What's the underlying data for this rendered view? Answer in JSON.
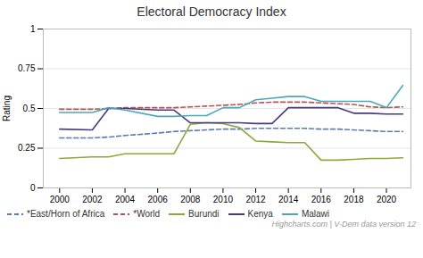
{
  "chart_data": {
    "type": "line",
    "title": "Electoral Democracy Index",
    "ylabel": "Rating",
    "footnote": "Highcharts.com | V-Dem data version 12",
    "x": [
      2000,
      2002,
      2003,
      2004,
      2006,
      2007,
      2008,
      2009,
      2010,
      2011,
      2012,
      2013,
      2014,
      2015,
      2016,
      2017,
      2018,
      2019,
      2020,
      2021
    ],
    "series": [
      {
        "name": "*East/Horn of Africa",
        "color": "#5b7db1",
        "line_style": "dashed",
        "values": [
          0.315,
          0.315,
          0.32,
          0.33,
          0.345,
          0.355,
          0.36,
          0.365,
          0.37,
          0.37,
          0.375,
          0.375,
          0.375,
          0.375,
          0.37,
          0.37,
          0.365,
          0.36,
          0.355,
          0.355
        ]
      },
      {
        "name": "*World",
        "color": "#b85450",
        "line_style": "dashed",
        "values": [
          0.495,
          0.495,
          0.5,
          0.505,
          0.505,
          0.505,
          0.51,
          0.515,
          0.52,
          0.525,
          0.535,
          0.54,
          0.54,
          0.54,
          0.535,
          0.53,
          0.525,
          0.51,
          0.505,
          0.51
        ]
      },
      {
        "name": "Burundi",
        "color": "#8aaa3a",
        "line_style": "solid",
        "values": [
          0.185,
          0.195,
          0.195,
          0.215,
          0.215,
          0.215,
          0.4,
          0.41,
          0.405,
          0.38,
          0.295,
          0.29,
          0.285,
          0.285,
          0.175,
          0.175,
          0.18,
          0.185,
          0.185,
          0.19
        ]
      },
      {
        "name": "Kenya",
        "color": "#4a3880",
        "line_style": "solid",
        "values": [
          0.37,
          0.365,
          0.5,
          0.5,
          0.49,
          0.49,
          0.41,
          0.41,
          0.41,
          0.41,
          0.405,
          0.405,
          0.505,
          0.505,
          0.505,
          0.505,
          0.47,
          0.47,
          0.465,
          0.465
        ]
      },
      {
        "name": "Malawi",
        "color": "#4aa8b8",
        "line_style": "solid",
        "values": [
          0.475,
          0.475,
          0.505,
          0.49,
          0.45,
          0.45,
          0.455,
          0.455,
          0.505,
          0.505,
          0.555,
          0.565,
          0.575,
          0.575,
          0.545,
          0.545,
          0.545,
          0.545,
          0.505,
          0.645
        ]
      }
    ],
    "xlim": [
      1999,
      2021.5
    ],
    "ylim": [
      0,
      1.0
    ],
    "xticks": [
      2000,
      2002,
      2004,
      2006,
      2008,
      2010,
      2012,
      2014,
      2016,
      2018,
      2020
    ],
    "yticks": [
      0,
      0.25,
      0.5,
      0.75,
      1
    ],
    "grid": "y",
    "legend": "bottom"
  }
}
